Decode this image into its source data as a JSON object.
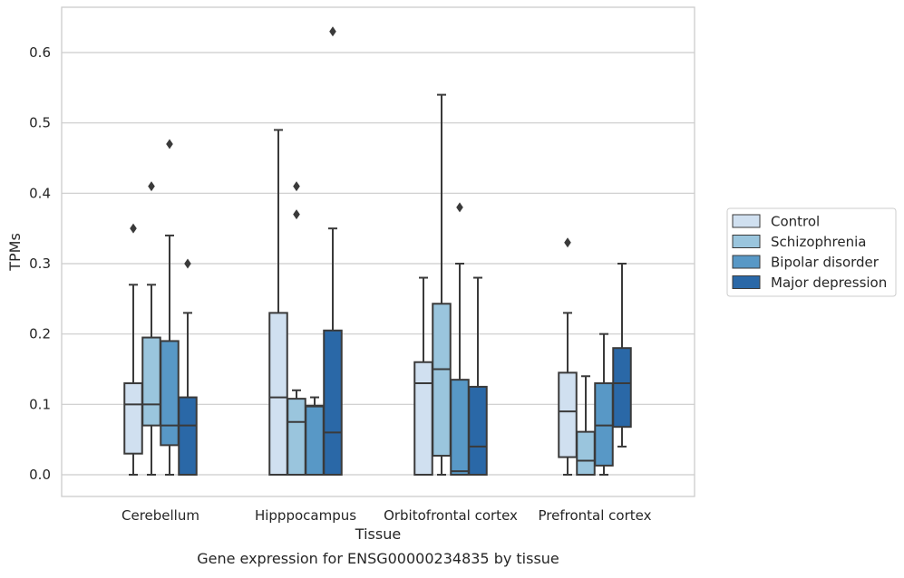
{
  "chart_data": {
    "type": "box",
    "caption": "Gene expression for ENSG00000234835 by tissue",
    "xlabel": "Tissue",
    "ylabel": "TPMs",
    "ylim": [
      -0.03,
      0.66
    ],
    "yticks": [
      "0.0",
      "0.1",
      "0.2",
      "0.3",
      "0.4",
      "0.5",
      "0.6"
    ],
    "grid": "horizontal",
    "legend_position": "right",
    "categories": [
      "Cerebellum",
      "Hipppocampus",
      "Orbitofrontal cortex",
      "Prefrontal cortex"
    ],
    "series": [
      {
        "name": "Control",
        "color": "#d0e0f0",
        "boxes": [
          {
            "whisker_low": 0.0,
            "q1": 0.03,
            "median": 0.1,
            "q3": 0.13,
            "whisker_high": 0.27,
            "outliers": [
              0.35
            ]
          },
          {
            "whisker_low": 0.0,
            "q1": 0.0,
            "median": 0.11,
            "q3": 0.23,
            "whisker_high": 0.49,
            "outliers": []
          },
          {
            "whisker_low": 0.0,
            "q1": 0.0,
            "median": 0.13,
            "q3": 0.16,
            "whisker_high": 0.28,
            "outliers": []
          },
          {
            "whisker_low": 0.0,
            "q1": 0.025,
            "median": 0.09,
            "q3": 0.145,
            "whisker_high": 0.23,
            "outliers": [
              0.33
            ]
          }
        ]
      },
      {
        "name": "Schizophrenia",
        "color": "#9ac5dd",
        "boxes": [
          {
            "whisker_low": 0.0,
            "q1": 0.07,
            "median": 0.1,
            "q3": 0.195,
            "whisker_high": 0.27,
            "outliers": [
              0.41
            ]
          },
          {
            "whisker_low": 0.0,
            "q1": 0.0,
            "median": 0.075,
            "q3": 0.108,
            "whisker_high": 0.12,
            "outliers": [
              0.37,
              0.41
            ]
          },
          {
            "whisker_low": 0.0,
            "q1": 0.027,
            "median": 0.15,
            "q3": 0.243,
            "whisker_high": 0.54,
            "outliers": []
          },
          {
            "whisker_low": 0.0,
            "q1": 0.0,
            "median": 0.02,
            "q3": 0.061,
            "whisker_high": 0.14,
            "outliers": []
          }
        ]
      },
      {
        "name": "Bipolar disorder",
        "color": "#5898c6",
        "boxes": [
          {
            "whisker_low": 0.0,
            "q1": 0.042,
            "median": 0.07,
            "q3": 0.19,
            "whisker_high": 0.34,
            "outliers": [
              0.47
            ]
          },
          {
            "whisker_low": 0.0,
            "q1": 0.0,
            "median": 0.097,
            "q3": 0.098,
            "whisker_high": 0.11,
            "outliers": []
          },
          {
            "whisker_low": 0.0,
            "q1": 0.0,
            "median": 0.005,
            "q3": 0.135,
            "whisker_high": 0.3,
            "outliers": [
              0.38
            ]
          },
          {
            "whisker_low": 0.0,
            "q1": 0.013,
            "median": 0.07,
            "q3": 0.13,
            "whisker_high": 0.2,
            "outliers": []
          }
        ]
      },
      {
        "name": "Major depression",
        "color": "#2a68a7",
        "boxes": [
          {
            "whisker_low": 0.0,
            "q1": 0.0,
            "median": 0.07,
            "q3": 0.11,
            "whisker_high": 0.23,
            "outliers": [
              0.3
            ]
          },
          {
            "whisker_low": 0.0,
            "q1": 0.0,
            "median": 0.06,
            "q3": 0.205,
            "whisker_high": 0.35,
            "outliers": [
              0.63
            ]
          },
          {
            "whisker_low": 0.0,
            "q1": 0.0,
            "median": 0.04,
            "q3": 0.125,
            "whisker_high": 0.28,
            "outliers": []
          },
          {
            "whisker_low": 0.04,
            "q1": 0.068,
            "median": 0.13,
            "q3": 0.18,
            "whisker_high": 0.3,
            "outliers": []
          }
        ]
      }
    ]
  }
}
